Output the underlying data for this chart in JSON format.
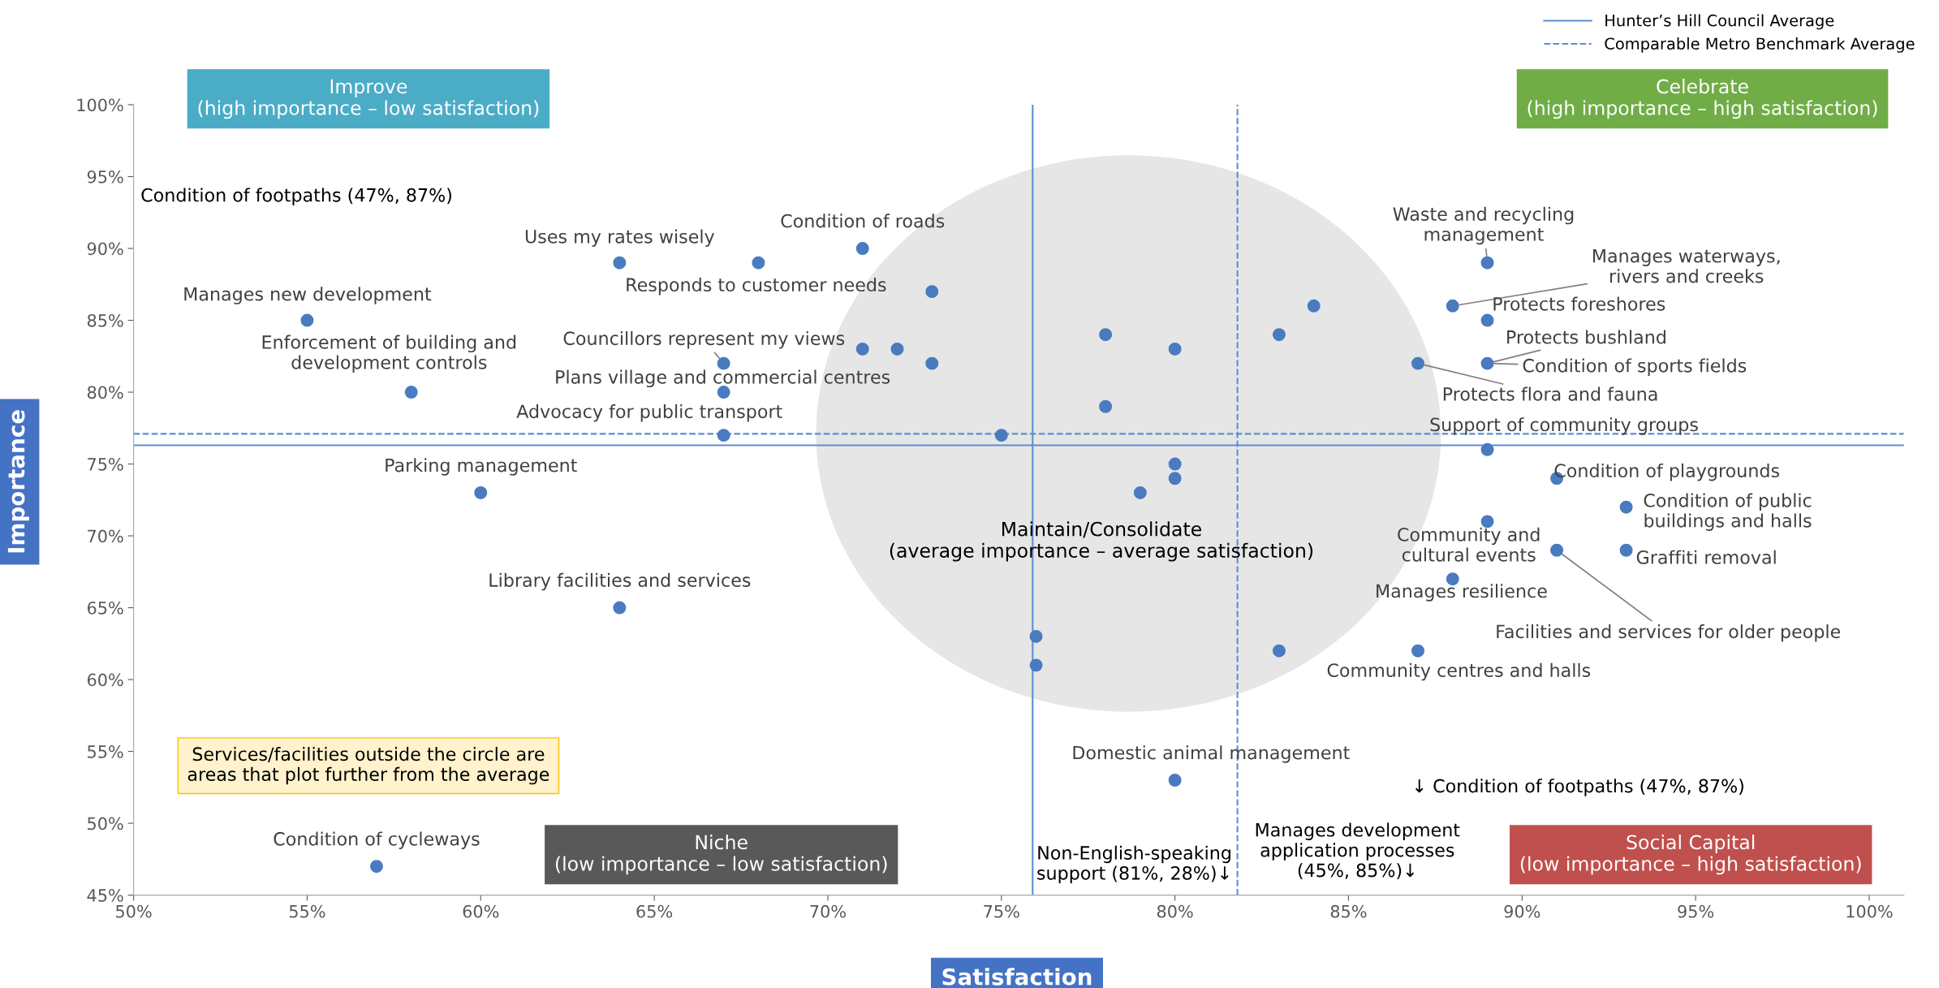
{
  "chart_data": {
    "type": "scatter",
    "xlabel": "Satisfaction",
    "ylabel": "Importance",
    "x": [
      55,
      58,
      64,
      71,
      68,
      73,
      71,
      72,
      73,
      67,
      67,
      67,
      75,
      78,
      78,
      80,
      83,
      84,
      80,
      80,
      79,
      60,
      64,
      76,
      76,
      80,
      57,
      83,
      87,
      88,
      89,
      89,
      91,
      93,
      93,
      91,
      89,
      88,
      89,
      89,
      87
    ],
    "series": [
      {
        "color": "#4a7bc0",
        "values": [
          85,
          80,
          89,
          90,
          89,
          87,
          83,
          83,
          82,
          82,
          80,
          77,
          77,
          84,
          79,
          83,
          84,
          86,
          75,
          74,
          73,
          73,
          65,
          63,
          61,
          53,
          47,
          62,
          62,
          67,
          71,
          76,
          74,
          72,
          69,
          69,
          89,
          86,
          85,
          82,
          82
        ]
      }
    ],
    "marker": "circle",
    "grid": false,
    "legend": "top right",
    "xlim": [
      50,
      101
    ],
    "ylim": [
      45,
      100
    ],
    "xticks": [
      {
        "value": 50,
        "label": "50%"
      },
      {
        "value": 55,
        "label": "55%"
      },
      {
        "value": 60,
        "label": "60%"
      },
      {
        "value": 65,
        "label": "65%"
      },
      {
        "value": 70,
        "label": "70%"
      },
      {
        "value": 75,
        "label": "75%"
      },
      {
        "value": 80,
        "label": "80%"
      },
      {
        "value": 85,
        "label": "85%"
      },
      {
        "value": 90,
        "label": "90%"
      },
      {
        "value": 95,
        "label": "95%"
      },
      {
        "value": 100,
        "label": "100%"
      }
    ],
    "yticks": [
      {
        "value": 45,
        "label": "45%"
      },
      {
        "value": 50,
        "label": "50%"
      },
      {
        "value": 55,
        "label": "55%"
      },
      {
        "value": 60,
        "label": "60%"
      },
      {
        "value": 65,
        "label": "65%"
      },
      {
        "value": 70,
        "label": "70%"
      },
      {
        "value": 75,
        "label": "75%"
      },
      {
        "value": 80,
        "label": "80%"
      },
      {
        "value": 85,
        "label": "85%"
      },
      {
        "value": 90,
        "label": "90%"
      },
      {
        "value": 95,
        "label": "95%"
      },
      {
        "value": 100,
        "label": "100%"
      }
    ],
    "ref_lines": [
      {
        "axis": "x",
        "value": 75.9,
        "label": "Hunter’s Hill Council Average",
        "color": "#5b8fcf",
        "line_style": "solid"
      },
      {
        "axis": "y",
        "value": 76.3,
        "color": "#5b8fcf",
        "line_style": "solid"
      },
      {
        "axis": "x",
        "value": 81.8,
        "label": "Comparable Metro Benchmark Average",
        "color": "#5b8fcf",
        "line_style": "dashed"
      },
      {
        "axis": "y",
        "value": 77.1,
        "color": "#5b8fcf",
        "line_style": "dashed"
      }
    ],
    "annotations": [
      "Improve\n(high importance – low satisfaction)",
      "Celebrate\n(high importance – high satisfaction)",
      "Maintain/Consolidate\n(average importance – average satisfaction)",
      "Niche\n(low importance – low satisfaction)",
      "Social Capital\n(low importance – high satisfaction)",
      "Services/facilities outside the circle are\nareas that plot further from the average",
      "Condition of footpaths (47%, 87%)",
      "↓ Condition of footpaths (47%, 87%)",
      "Non-English-speaking\nsupport (81%, 28%)↓",
      "Manages development\napplication processes\n(45%, 85%)↓",
      {
        "text": "Manages new development",
        "x": 55,
        "y": 85
      },
      {
        "text": "Enforcement of building and\ndevelopment controls",
        "x": 58,
        "y": 80
      },
      {
        "text": "Uses my rates wisely",
        "x": 64,
        "y": 89
      },
      {
        "text": "Condition of roads",
        "x": 71,
        "y": 90
      },
      {
        "text": "Responds to customer needs",
        "x": 68,
        "y": 89
      },
      {
        "text": "Councillors represent my views",
        "x": 67,
        "y": 82
      },
      {
        "text": "Plans village and commercial centres",
        "x": 67,
        "y": 80
      },
      {
        "text": "Advocacy for public transport",
        "x": 67,
        "y": 77
      },
      {
        "text": "Parking management",
        "x": 60,
        "y": 73
      },
      {
        "text": "Library facilities and services",
        "x": 64,
        "y": 65
      },
      {
        "text": "Condition of cycleways",
        "x": 57,
        "y": 47
      },
      {
        "text": "Domestic animal management",
        "x": 80,
        "y": 53
      },
      {
        "text": "Waste and recycling\nmanagement",
        "x": 89,
        "y": 89
      },
      {
        "text": "Manages waterways,\nrivers and creeks",
        "x": 88,
        "y": 86
      },
      {
        "text": "Protects foreshores",
        "x": 89,
        "y": 85
      },
      {
        "text": "Protects bushland",
        "x": 89,
        "y": 82
      },
      {
        "text": "Condition of sports fields",
        "x": 89,
        "y": 82
      },
      {
        "text": "Protects flora and fauna",
        "x": 87,
        "y": 82
      },
      {
        "text": "Support of community groups",
        "x": 89,
        "y": 76
      },
      {
        "text": "Condition of playgrounds",
        "x": 91,
        "y": 74
      },
      {
        "text": "Condition of public\nbuildings and halls",
        "x": 93,
        "y": 72
      },
      {
        "text": "Graffiti removal",
        "x": 93,
        "y": 69
      },
      {
        "text": "Community and\ncultural events",
        "x": 89,
        "y": 71
      },
      {
        "text": "Manages resilience",
        "x": 88,
        "y": 67
      },
      {
        "text": "Facilities and services for older people",
        "x": 91,
        "y": 69
      },
      {
        "text": "Community centres and halls",
        "x": 87,
        "y": 62
      }
    ]
  }
}
